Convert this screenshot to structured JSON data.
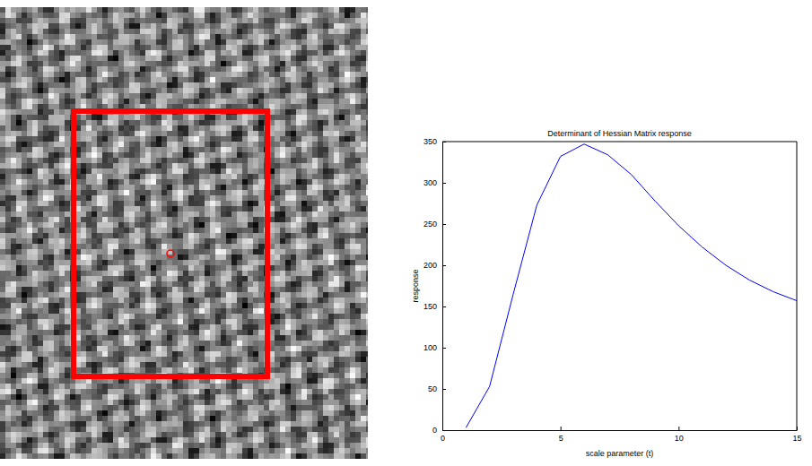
{
  "chart_data": {
    "type": "line",
    "title": "Determinant of Hessian Matrix response",
    "x_label": "scale parameter (t)",
    "y_label": "response",
    "x": [
      1,
      2,
      3,
      4,
      5,
      6,
      7,
      8,
      9,
      10,
      11,
      12,
      13,
      14,
      15
    ],
    "values": [
      3,
      53,
      165,
      273,
      332,
      347,
      334,
      310,
      278,
      248,
      222,
      200,
      182,
      168,
      157
    ],
    "color": "#0000ff",
    "xlim": [
      0,
      15
    ],
    "xticks": [
      0,
      5,
      10,
      15
    ],
    "ylim": [
      0,
      350
    ],
    "yticks": [
      0,
      50,
      100,
      150,
      200,
      250,
      300,
      350
    ],
    "grid": false
  }
}
